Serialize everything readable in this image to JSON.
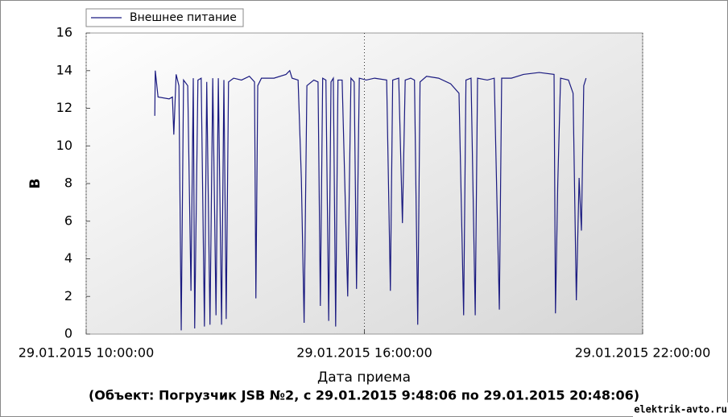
{
  "chart_data": {
    "type": "line",
    "ylabel": "В",
    "xlabel": "Дата приема",
    "subtitle": "(Объект: Погрузчик JSB №2, с 29.01.2015 9:48:06 по 29.01.2015 20:48:06)",
    "watermark": "elektrik-avto.ru",
    "legend": "top-left",
    "xgrid": true,
    "xlim": [
      10,
      22
    ],
    "xticks": [
      {
        "value": 10,
        "label": "29.01.2015 10:00:00"
      },
      {
        "value": 16,
        "label": "29.01.2015 16:00:00"
      },
      {
        "value": 22,
        "label": "29.01.2015 22:00:00"
      }
    ],
    "ylim": [
      0,
      16
    ],
    "yticks": [
      0,
      2,
      4,
      6,
      8,
      10,
      12,
      14,
      16
    ],
    "x": [
      11.48,
      11.49,
      11.55,
      11.79,
      11.86,
      11.89,
      11.94,
      12.0,
      12.05,
      12.1,
      12.19,
      12.26,
      12.31,
      12.34,
      12.41,
      12.48,
      12.55,
      12.6,
      12.67,
      12.73,
      12.8,
      12.85,
      12.92,
      12.97,
      13.02,
      13.07,
      13.18,
      13.35,
      13.52,
      13.63,
      13.66,
      13.7,
      13.78,
      14.05,
      14.31,
      14.39,
      14.44,
      14.57,
      14.64,
      14.7,
      14.76,
      14.91,
      15.0,
      15.05,
      15.1,
      15.17,
      15.23,
      15.28,
      15.33,
      15.38,
      15.43,
      15.52,
      15.64,
      15.71,
      15.78,
      15.83,
      15.89,
      16.04,
      16.22,
      16.48,
      16.56,
      16.61,
      16.74,
      16.82,
      16.88,
      17.0,
      17.08,
      17.15,
      17.2,
      17.34,
      17.6,
      17.86,
      18.04,
      18.14,
      18.19,
      18.3,
      18.39,
      18.44,
      18.65,
      18.8,
      18.91,
      18.96,
      19.17,
      19.43,
      19.77,
      20.09,
      20.12,
      20.17,
      20.23,
      20.4,
      20.5,
      20.57,
      20.63,
      20.68,
      20.73,
      20.78
    ],
    "series": [
      {
        "name": "Внешнее питание",
        "color": "#1a1a80",
        "values": [
          11.6,
          14.0,
          12.6,
          12.5,
          12.6,
          10.6,
          13.8,
          13.2,
          0.2,
          13.5,
          13.2,
          2.3,
          13.6,
          0.3,
          13.5,
          13.6,
          0.4,
          13.4,
          0.5,
          13.6,
          1.0,
          13.6,
          0.5,
          13.5,
          0.8,
          13.4,
          13.6,
          13.5,
          13.7,
          13.4,
          1.9,
          13.2,
          13.6,
          13.6,
          13.8,
          14.0,
          13.6,
          13.5,
          8.3,
          0.6,
          13.2,
          13.5,
          13.4,
          1.5,
          13.6,
          13.5,
          0.7,
          13.4,
          13.6,
          0.4,
          13.5,
          13.5,
          2.0,
          13.6,
          13.4,
          2.4,
          13.6,
          13.5,
          13.6,
          13.5,
          2.3,
          13.5,
          13.6,
          5.9,
          13.5,
          13.6,
          13.5,
          0.5,
          13.4,
          13.7,
          13.6,
          13.3,
          12.8,
          1.0,
          13.5,
          13.6,
          1.0,
          13.6,
          13.5,
          13.6,
          1.3,
          13.6,
          13.6,
          13.8,
          13.9,
          13.8,
          1.1,
          8.0,
          13.6,
          13.5,
          12.8,
          1.8,
          8.3,
          5.5,
          13.2,
          13.6
        ]
      }
    ]
  }
}
